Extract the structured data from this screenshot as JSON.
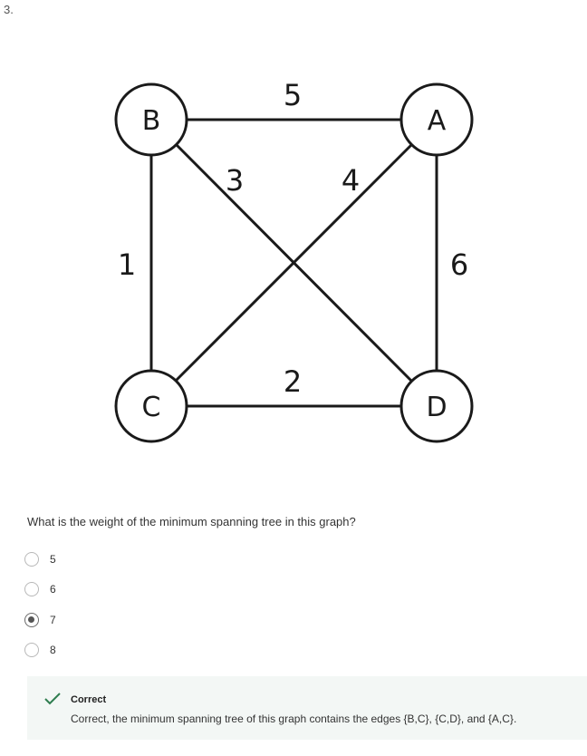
{
  "question_number": "3.",
  "graph": {
    "nodes": {
      "A": "A",
      "B": "B",
      "C": "C",
      "D": "D"
    },
    "edge_weights": {
      "B_A": "5",
      "B_D": "3",
      "A_C": "4",
      "B_C": "1",
      "A_D": "6",
      "C_D": "2"
    }
  },
  "question": {
    "text": "What is the weight of the minimum spanning tree in this graph?",
    "options": [
      {
        "label": "5",
        "selected": false
      },
      {
        "label": "6",
        "selected": false
      },
      {
        "label": "7",
        "selected": true
      },
      {
        "label": "8",
        "selected": false
      }
    ]
  },
  "feedback": {
    "status": "Correct",
    "text": "Correct, the minimum spanning tree of this graph contains the edges {B,C}, {C,D}, and {A,C}.",
    "accent_color": "#2e7d4f",
    "background_color": "#f3f7f5"
  }
}
